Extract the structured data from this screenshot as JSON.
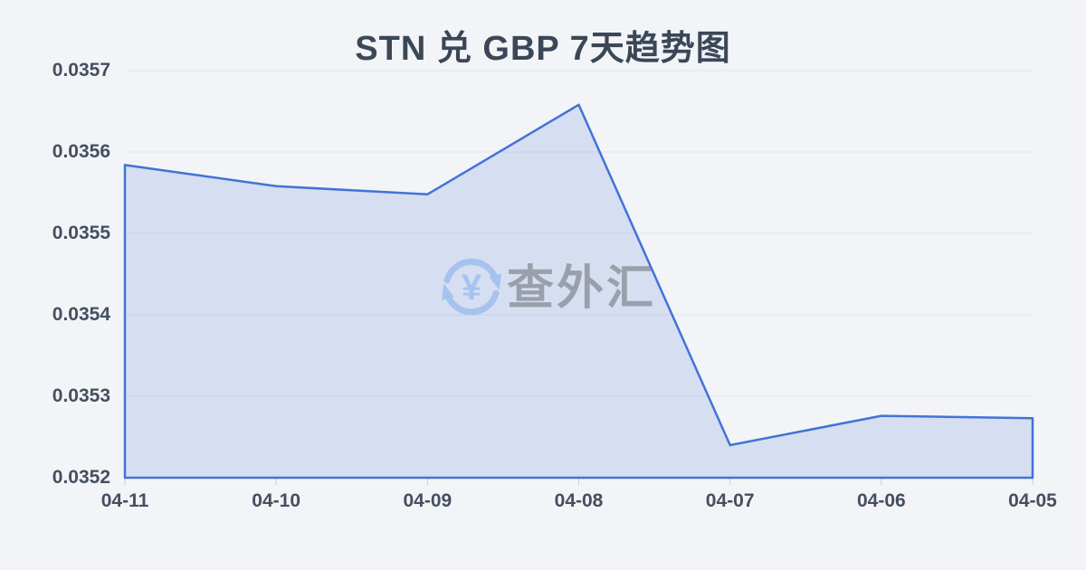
{
  "title": "STN 兑 GBP 7天趋势图",
  "watermark": {
    "text": "查外汇",
    "currency_symbol": "¥",
    "icon": "circular-exchange-arrows-icon"
  },
  "chart_data": {
    "type": "area",
    "title": "STN 兑 GBP 7天趋势图",
    "categories": [
      "04-11",
      "04-10",
      "04-09",
      "04-08",
      "04-07",
      "04-06",
      "04-05"
    ],
    "values": [
      0.035584,
      0.035558,
      0.035548,
      0.035658,
      0.03524,
      0.035276,
      0.035273
    ],
    "xlabel": "",
    "ylabel": "",
    "ylim": [
      0.0352,
      0.0357
    ],
    "y_ticks": [
      0.0352,
      0.0353,
      0.0354,
      0.0355,
      0.0356,
      0.0357
    ],
    "y_tick_labels": [
      "0.0352",
      "0.0353",
      "0.0354",
      "0.0355",
      "0.0356",
      "0.0357"
    ],
    "grid": true,
    "legend": false,
    "series_name": "STN/GBP"
  },
  "colors": {
    "background": "#f2f4f7",
    "line": "#4273d5",
    "area_fill": "rgba(66,115,213,0.16)",
    "gridline": "#e3e5ea",
    "tick": "#c9ccd4",
    "title_text": "#3b4757",
    "axis_text": "#454f60",
    "watermark_text": "#9aa0ab",
    "watermark_icon": "#a7c2ef"
  }
}
